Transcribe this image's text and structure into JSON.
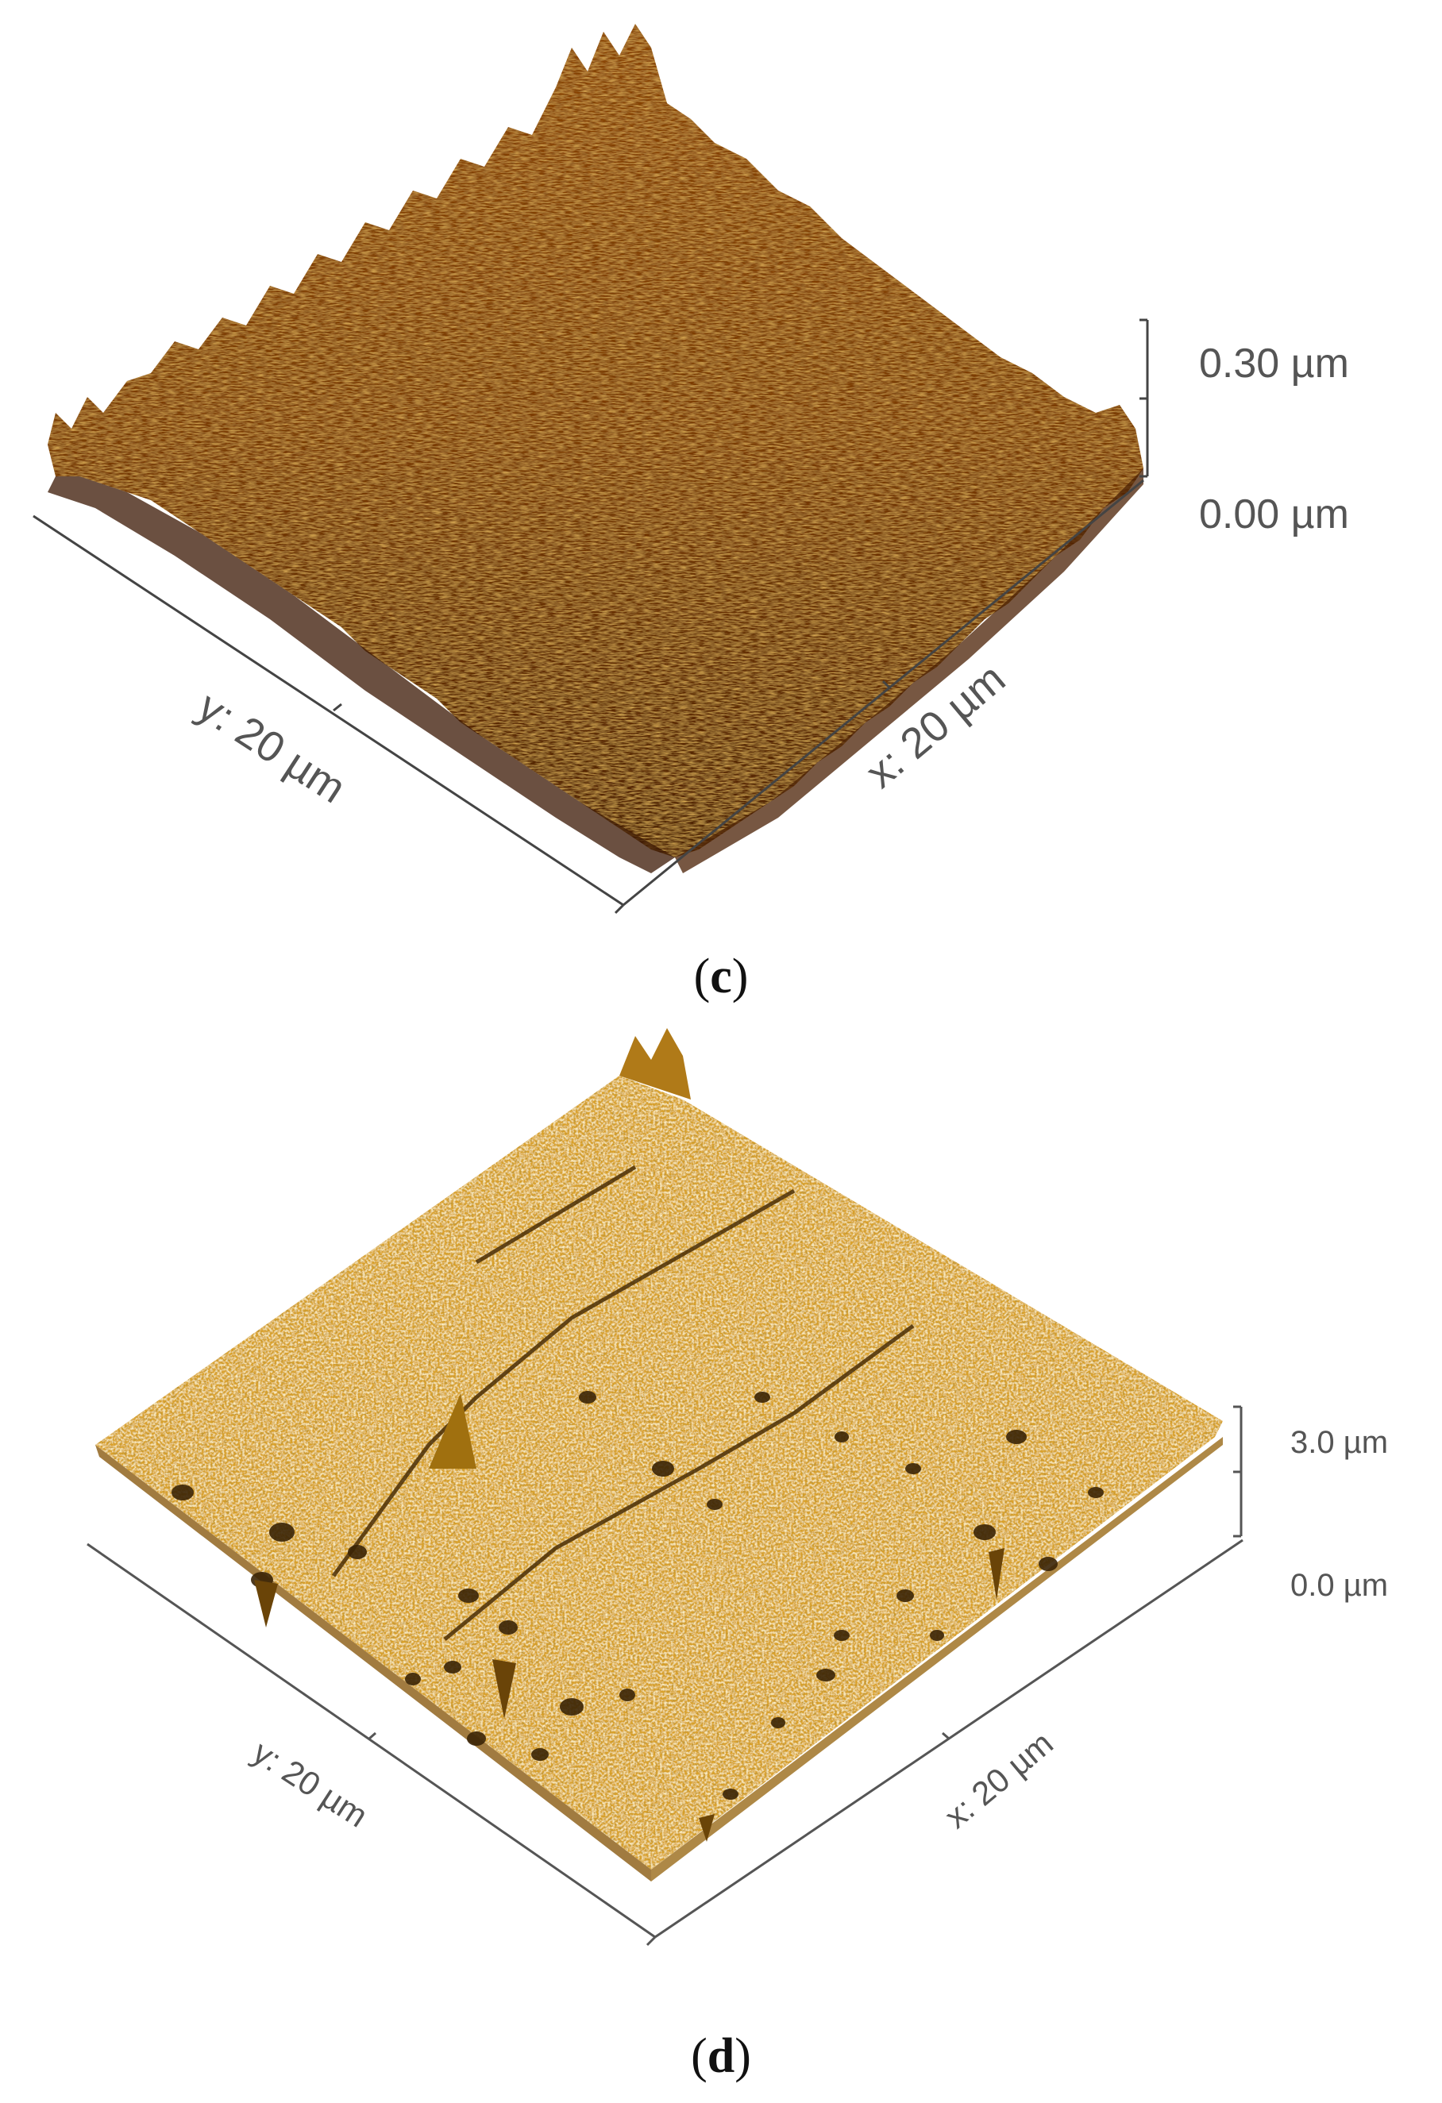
{
  "figure": {
    "panels": [
      {
        "caption_open": "(",
        "caption_letter": "c",
        "caption_close": ")",
        "x_label": "x: 20 µm",
        "y_label": "y: 20 µm",
        "z_max_label": "0.30 µm",
        "z_min_label": "0.00 µm",
        "colors": {
          "base": "#7a3a05",
          "light": "#c8761a",
          "dark": "#3a1602",
          "highlight": "#e0a040"
        }
      },
      {
        "caption_open": "(",
        "caption_letter": "d",
        "caption_close": ")",
        "x_label": "x: 20 µm",
        "y_label": "y: 20 µm",
        "z_max_label": "3.0 µm",
        "z_min_label": "0.0 µm",
        "colors": {
          "base": "#d9a12a",
          "light": "#f2cd5e",
          "dark": "#5a3a08",
          "highlight": "#fbe7a0"
        }
      }
    ]
  }
}
